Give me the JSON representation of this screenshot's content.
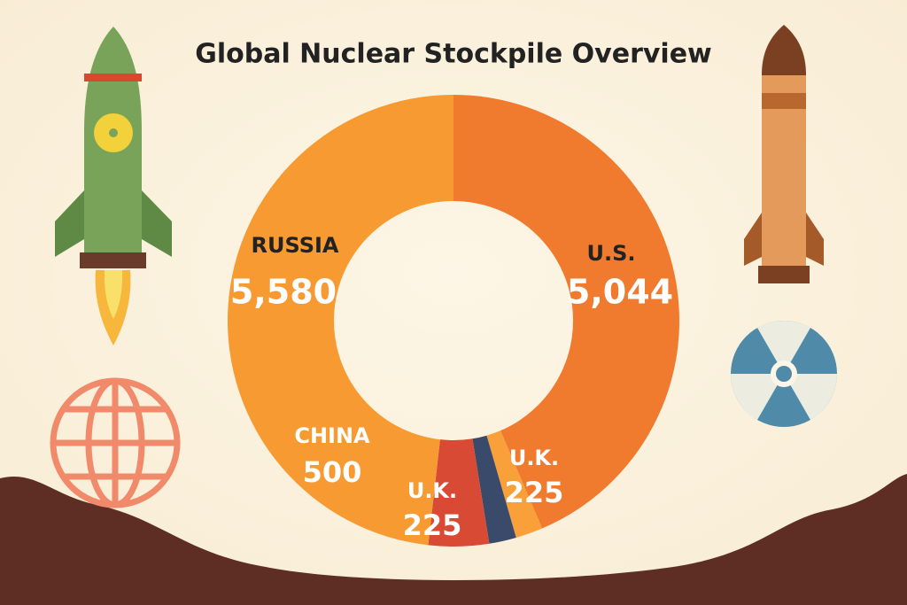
{
  "chart_data": {
    "type": "donut",
    "title": "Global Nuclear Stockpile Overview",
    "categories": [
      "U.S.",
      "U.K.",
      "U.K.",
      "CHINA",
      "RUSSIA"
    ],
    "values": [
      5044,
      225,
      225,
      500,
      5580
    ],
    "value_labels": [
      "5,044",
      "225",
      "225",
      "500",
      "5,580"
    ],
    "colors": [
      "#f07b2e",
      "#f9a03a",
      "#3a4a6b",
      "#d94a35",
      "#f79a32"
    ]
  }
}
